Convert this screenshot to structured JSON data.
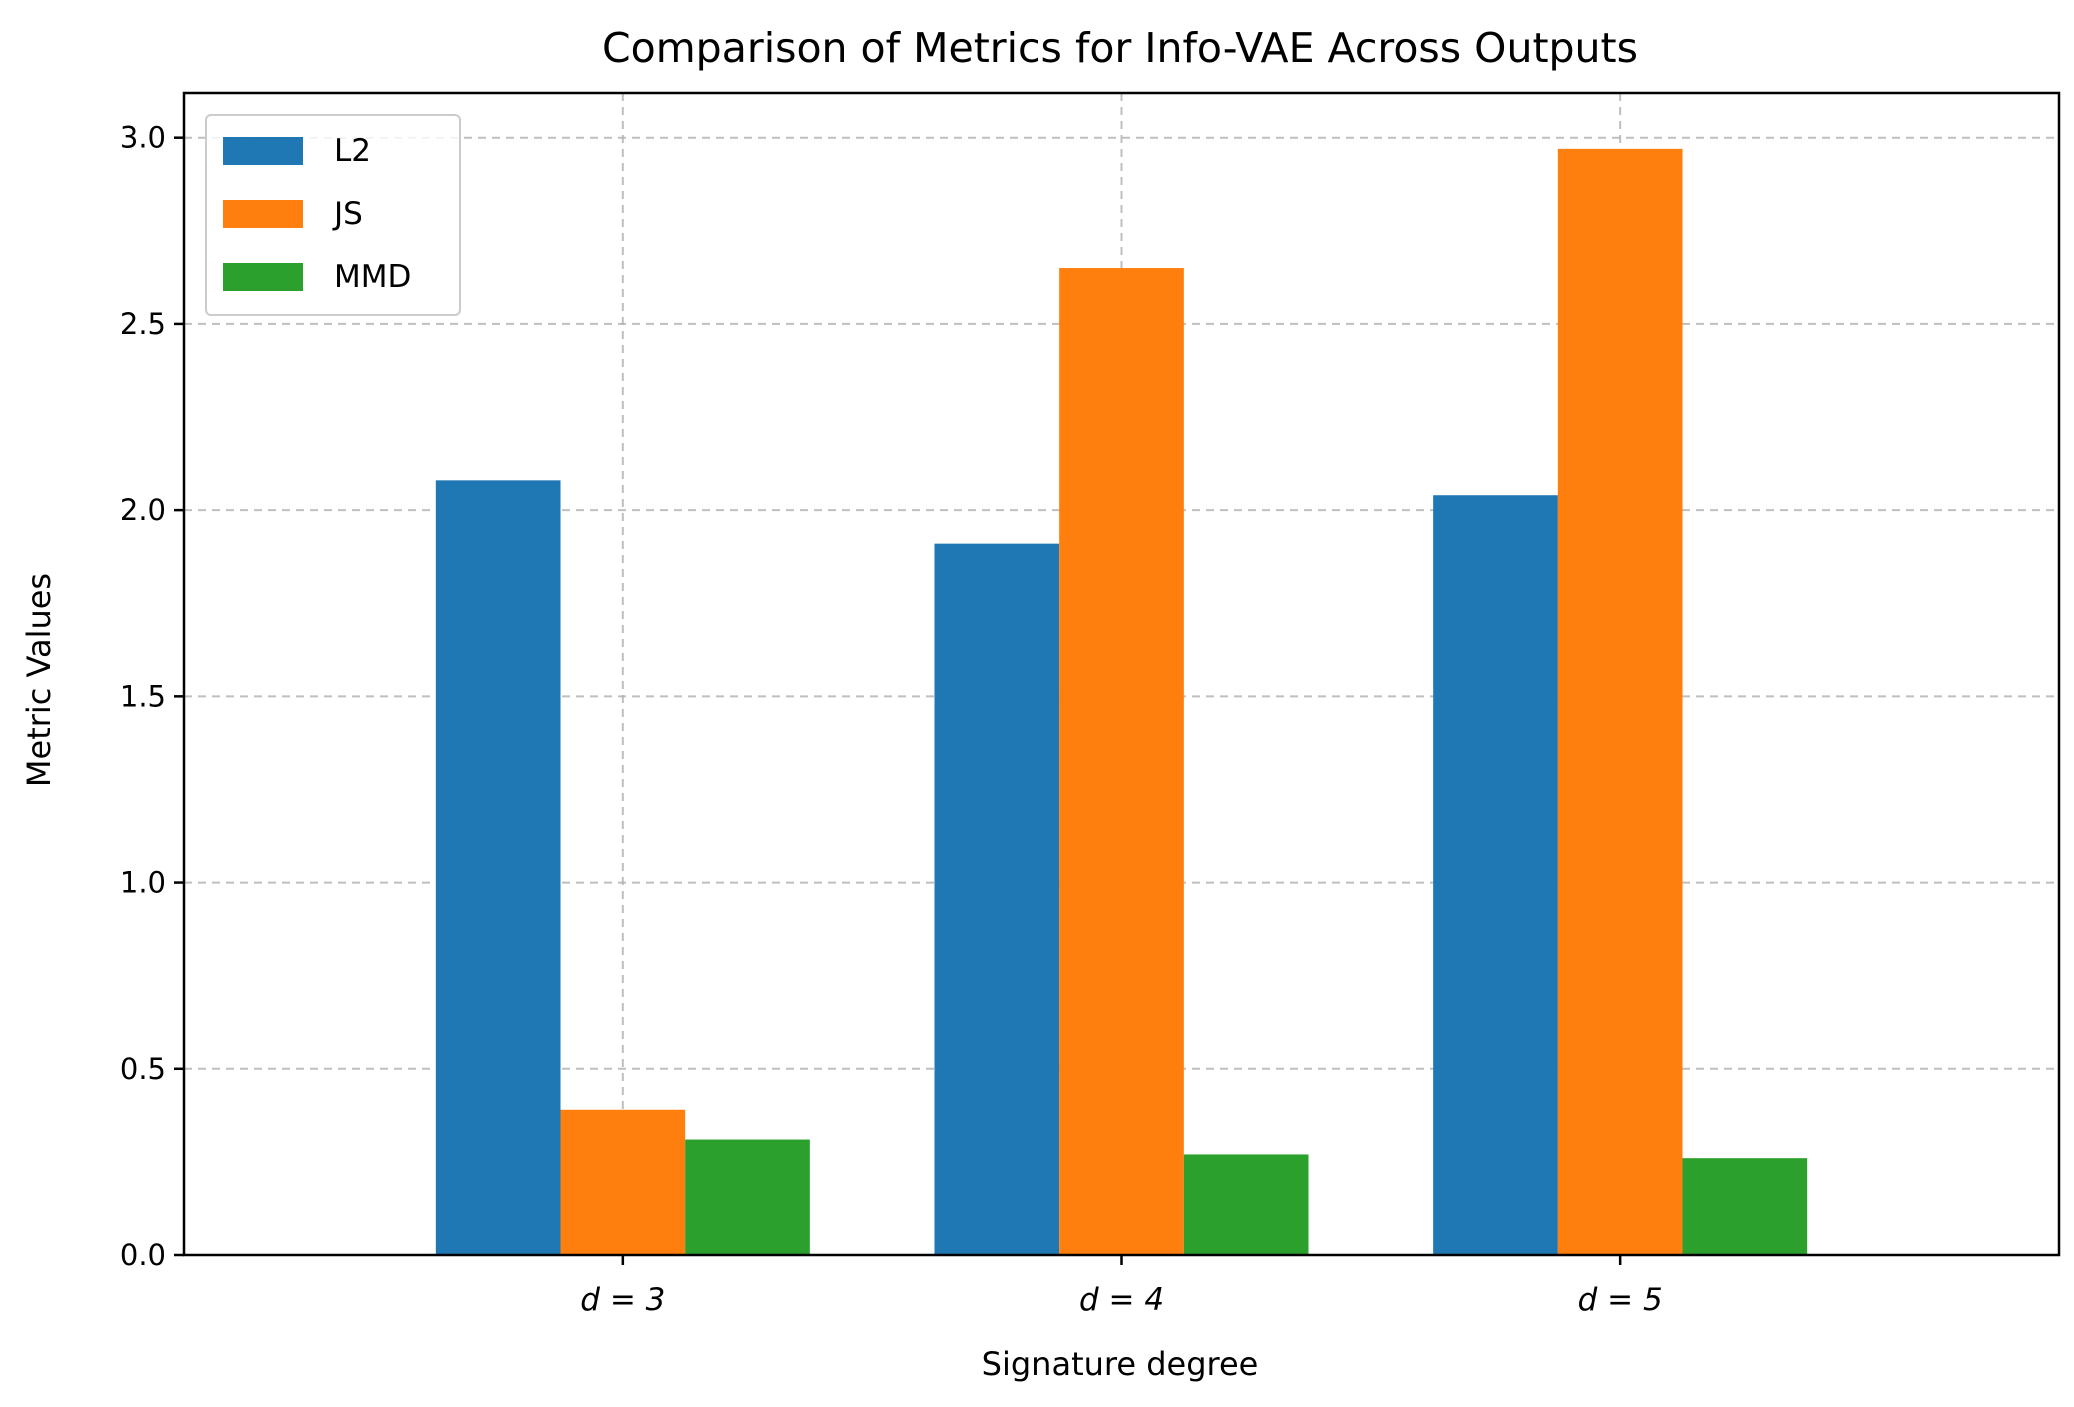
{
  "chart_data": {
    "type": "bar",
    "title": "Comparison of Metrics for Info-VAE Across Outputs",
    "xlabel": "Signature degree",
    "ylabel": "Metric Values",
    "categories": [
      "d = 3",
      "d = 4",
      "d = 5"
    ],
    "series": [
      {
        "name": "L2",
        "color": "#1f77b4",
        "values": [
          2.08,
          1.91,
          2.04
        ]
      },
      {
        "name": "JS",
        "color": "#ff7f0e",
        "values": [
          0.39,
          2.65,
          2.97
        ]
      },
      {
        "name": "MMD",
        "color": "#2ca02c",
        "values": [
          0.31,
          0.27,
          0.26
        ]
      }
    ],
    "ylim": [
      0,
      3.12
    ],
    "yticks": [
      0.0,
      0.5,
      1.0,
      1.5,
      2.0,
      2.5,
      3.0
    ],
    "ytick_labels": [
      "0.0",
      "0.5",
      "1.0",
      "1.5",
      "2.0",
      "2.5",
      "3.0"
    ],
    "grid": true,
    "legend_position": "top-left"
  }
}
